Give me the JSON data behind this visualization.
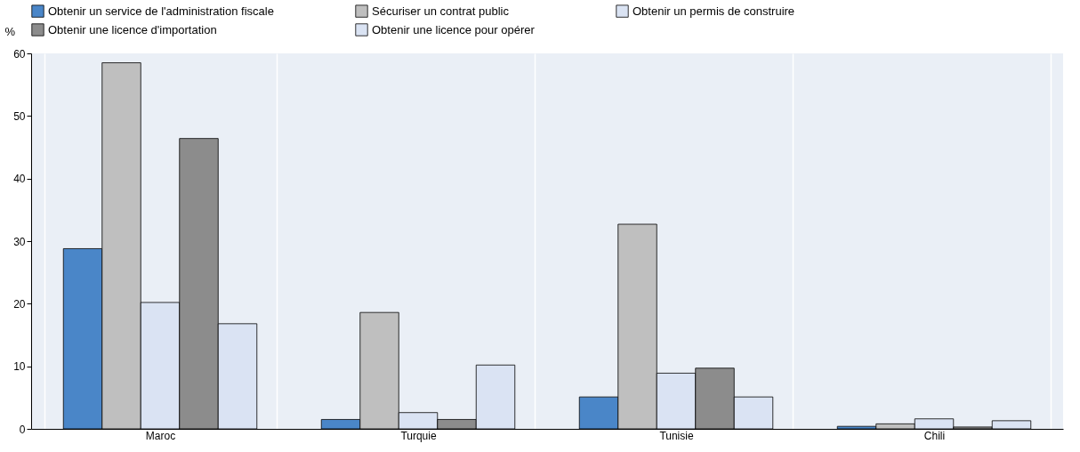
{
  "chart_data": {
    "type": "bar",
    "ylabel": "%",
    "categories": [
      "Maroc",
      "Turquie",
      "Tunisie",
      "Chili"
    ],
    "series": [
      {
        "name": "Obtenir un service de l'administration fiscale",
        "color": "#4a86c8",
        "values": [
          28.8,
          1.5,
          5.1,
          0.4
        ]
      },
      {
        "name": "Sécuriser un contrat public",
        "color": "#bfbfbf",
        "values": [
          58.5,
          18.6,
          32.7,
          0.8
        ]
      },
      {
        "name": "Obtenir un permis de construire",
        "color": "#dae3f3",
        "values": [
          20.2,
          2.6,
          8.9,
          1.6
        ]
      },
      {
        "name": "Obtenir une licence d'importation",
        "color": "#8c8c8c",
        "values": [
          46.4,
          1.5,
          9.7,
          0.3
        ]
      },
      {
        "name": "Obtenir une licence pour opérer",
        "color": "#dae3f3",
        "values": [
          16.8,
          10.2,
          5.1,
          1.3
        ]
      }
    ],
    "ylim": [
      0,
      60
    ],
    "yticks": [
      0,
      10,
      20,
      30,
      40,
      50,
      60
    ],
    "grid": "x",
    "legend": "top"
  }
}
